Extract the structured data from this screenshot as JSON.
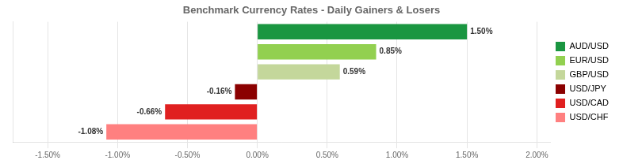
{
  "chart_data": {
    "type": "bar",
    "orientation": "horizontal",
    "title": "Benchmark Currency Rates - Daily Gainers & Losers",
    "categories": [
      "AUD/USD",
      "EUR/USD",
      "GBP/USD",
      "USD/JPY",
      "USD/CAD",
      "USD/CHF"
    ],
    "values": [
      1.5,
      0.85,
      0.59,
      -0.16,
      -0.66,
      -1.08
    ],
    "value_labels": [
      "1.50%",
      "0.85%",
      "0.59%",
      "-0.16%",
      "-0.66%",
      "-1.08%"
    ],
    "colors": [
      "#1a9641",
      "#92d050",
      "#c4d79b",
      "#8b0000",
      "#e02020",
      "#ff8080"
    ],
    "data_labels": true,
    "xlim": [
      -1.75,
      2.1
    ],
    "xticks": [
      {
        "value": -1.5,
        "label": "-1.50%"
      },
      {
        "value": -1.0,
        "label": "-1.00%"
      },
      {
        "value": -0.5,
        "label": "-0.50%"
      },
      {
        "value": 0.0,
        "label": "0.00%"
      },
      {
        "value": 0.5,
        "label": "0.50%"
      },
      {
        "value": 1.0,
        "label": "1.00%"
      },
      {
        "value": 1.5,
        "label": "1.50%"
      },
      {
        "value": 2.0,
        "label": "2.00%"
      }
    ],
    "grid": true,
    "tick_labels": "x",
    "legend": "right"
  }
}
